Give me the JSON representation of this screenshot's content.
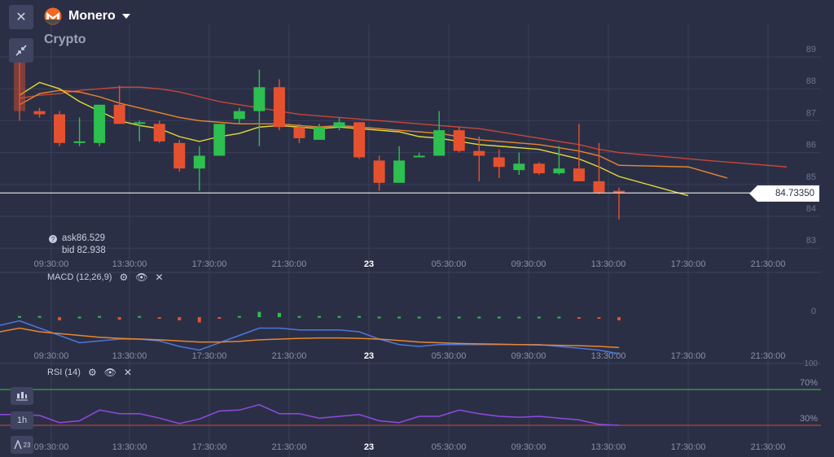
{
  "header": {
    "asset_name": "Monero",
    "category": "Crypto",
    "close_icon": "close-icon",
    "collapse_icon": "collapse-icon",
    "logo_icon": "monero-logo-icon",
    "dropdown_icon": "caret-down-icon"
  },
  "quote": {
    "ask": "ask86.529",
    "bid": "bid 82.938",
    "current_price": "84.73350",
    "current_value": 84.7335
  },
  "price_axis": {
    "labels": [
      "89",
      "88",
      "87",
      "86",
      "85",
      "84",
      "83"
    ],
    "min": 82.7,
    "max": 89.5
  },
  "time_axis": {
    "labels": [
      "09:30:00",
      "13:30:00",
      "17:30:00",
      "21:30:00",
      "23",
      "05:30:00",
      "09:30:00",
      "13:30:00",
      "17:30:00",
      "21:30:00"
    ]
  },
  "macd": {
    "label": "MACD (12,26,9)",
    "zero_label": "0"
  },
  "rsi": {
    "label": "RSI (14)",
    "level_70": "70%",
    "level_30": "30%",
    "top_label": "100"
  },
  "left_tools": {
    "chart_type_icon": "candlestick-icon",
    "timeframe": "1h",
    "draw_icon": "indicator-draw-icon",
    "badge": "23"
  },
  "colors": {
    "background": "#2b2f45",
    "bull": "#2dbf4f",
    "bear": "#e5512f",
    "ema_fast": "#e2d93b",
    "ema_mid": "#e8862f",
    "ema_slow": "#c8463c",
    "macd_line": "#4a77de",
    "signal_line": "#e8862f",
    "rsi_line": "#8e4be0",
    "rsi_70": "#38c44a",
    "rsi_30": "#d8453a"
  },
  "chart_data": {
    "type": "candlestick",
    "candles": [
      {
        "o": 88.9,
        "h": 89.0,
        "l": 87.0,
        "c": 87.3
      },
      {
        "o": 87.3,
        "h": 87.4,
        "l": 87.1,
        "c": 87.2
      },
      {
        "o": 87.2,
        "h": 87.3,
        "l": 86.2,
        "c": 86.3
      },
      {
        "o": 86.35,
        "h": 87.1,
        "l": 86.2,
        "c": 86.35
      },
      {
        "o": 86.3,
        "h": 87.5,
        "l": 86.2,
        "c": 87.5
      },
      {
        "o": 87.5,
        "h": 88.1,
        "l": 86.9,
        "c": 86.9
      },
      {
        "o": 86.95,
        "h": 87.0,
        "l": 86.35,
        "c": 86.95
      },
      {
        "o": 86.9,
        "h": 87.0,
        "l": 86.3,
        "c": 86.35
      },
      {
        "o": 86.3,
        "h": 86.4,
        "l": 85.4,
        "c": 85.5
      },
      {
        "o": 85.5,
        "h": 86.2,
        "l": 84.8,
        "c": 85.9
      },
      {
        "o": 85.9,
        "h": 86.9,
        "l": 85.9,
        "c": 86.9
      },
      {
        "o": 87.05,
        "h": 87.4,
        "l": 86.9,
        "c": 87.3
      },
      {
        "o": 87.3,
        "h": 88.6,
        "l": 86.2,
        "c": 88.05
      },
      {
        "o": 88.05,
        "h": 88.3,
        "l": 86.7,
        "c": 86.8
      },
      {
        "o": 86.8,
        "h": 86.9,
        "l": 86.3,
        "c": 86.45
      },
      {
        "o": 86.4,
        "h": 86.9,
        "l": 86.4,
        "c": 86.8
      },
      {
        "o": 86.8,
        "h": 87.1,
        "l": 86.7,
        "c": 86.95
      },
      {
        "o": 86.95,
        "h": 86.95,
        "l": 85.8,
        "c": 85.85
      },
      {
        "o": 85.75,
        "h": 85.9,
        "l": 84.8,
        "c": 85.05
      },
      {
        "o": 85.05,
        "h": 86.2,
        "l": 85.05,
        "c": 85.75
      },
      {
        "o": 85.9,
        "h": 86.0,
        "l": 85.85,
        "c": 85.9
      },
      {
        "o": 85.9,
        "h": 87.3,
        "l": 85.9,
        "c": 86.7
      },
      {
        "o": 86.7,
        "h": 86.8,
        "l": 86.0,
        "c": 86.05
      },
      {
        "o": 86.05,
        "h": 86.5,
        "l": 85.1,
        "c": 85.9
      },
      {
        "o": 85.85,
        "h": 86.1,
        "l": 85.2,
        "c": 85.55
      },
      {
        "o": 85.45,
        "h": 86.0,
        "l": 85.3,
        "c": 85.65
      },
      {
        "o": 85.65,
        "h": 85.7,
        "l": 85.3,
        "c": 85.35
      },
      {
        "o": 85.35,
        "h": 86.2,
        "l": 85.3,
        "c": 85.5
      },
      {
        "o": 85.5,
        "h": 86.9,
        "l": 85.1,
        "c": 85.1
      },
      {
        "o": 85.1,
        "h": 86.3,
        "l": 84.7,
        "c": 84.75
      },
      {
        "o": 84.8,
        "h": 84.9,
        "l": 83.9,
        "c": 84.73
      }
    ],
    "ema_fast": [
      87.8,
      88.2,
      88.0,
      87.6,
      87.3,
      87.0,
      86.85,
      86.75,
      86.5,
      86.35,
      86.5,
      86.6,
      86.8,
      86.85,
      86.8,
      86.75,
      86.8,
      86.75,
      86.7,
      86.65,
      86.5,
      86.45,
      86.35,
      86.25,
      86.2,
      86.15,
      86.1,
      85.95,
      85.8,
      85.55,
      85.25
    ],
    "ema_mid": [
      87.5,
      87.85,
      87.95,
      87.9,
      87.75,
      87.55,
      87.4,
      87.25,
      87.1,
      87.0,
      86.95,
      86.9,
      86.9,
      86.9,
      86.85,
      86.8,
      86.85,
      86.8,
      86.75,
      86.7,
      86.65,
      86.6,
      86.5,
      86.4,
      86.35,
      86.3,
      86.25,
      86.15,
      86.05,
      85.9,
      85.6
    ],
    "ema_slow": [
      87.7,
      87.8,
      87.85,
      87.95,
      88.0,
      88.05,
      88.05,
      88.0,
      87.9,
      87.75,
      87.6,
      87.5,
      87.4,
      87.3,
      87.2,
      87.15,
      87.1,
      87.05,
      87.0,
      86.95,
      86.9,
      86.85,
      86.8,
      86.75,
      86.65,
      86.55,
      86.45,
      86.35,
      86.25,
      86.1,
      86.0
    ],
    "macd_hist": [
      0.05,
      0.05,
      -0.15,
      0.02,
      0.05,
      -0.12,
      0.05,
      -0.05,
      -0.15,
      -0.25,
      -0.05,
      0.05,
      0.25,
      0.2,
      0.05,
      0.05,
      0.05,
      0.05,
      0.02,
      0.02,
      0.02,
      0.02,
      0.02,
      0.02,
      0.02,
      0.02,
      0.02,
      0.02,
      -0.02,
      -0.02,
      -0.15
    ],
    "macd_line": [
      -0.1,
      -0.3,
      -0.5,
      -0.7,
      -0.65,
      -0.6,
      -0.6,
      -0.65,
      -0.8,
      -0.9,
      -0.7,
      -0.5,
      -0.3,
      -0.3,
      -0.35,
      -0.35,
      -0.35,
      -0.4,
      -0.6,
      -0.75,
      -0.8,
      -0.75,
      -0.75,
      -0.75,
      -0.75,
      -0.75,
      -0.75,
      -0.8,
      -0.85,
      -0.9,
      -1.0
    ],
    "signal_line": [
      -0.3,
      -0.4,
      -0.45,
      -0.5,
      -0.55,
      -0.58,
      -0.6,
      -0.62,
      -0.65,
      -0.68,
      -0.68,
      -0.66,
      -0.62,
      -0.6,
      -0.58,
      -0.57,
      -0.57,
      -0.58,
      -0.6,
      -0.64,
      -0.68,
      -0.7,
      -0.72,
      -0.73,
      -0.74,
      -0.75,
      -0.76,
      -0.77,
      -0.78,
      -0.8,
      -0.83
    ],
    "rsi": [
      42,
      41,
      33,
      35,
      47,
      43,
      43,
      38,
      32,
      37,
      46,
      47,
      53,
      43,
      43,
      38,
      40,
      42,
      35,
      33,
      40,
      40,
      47,
      43,
      40,
      39,
      40,
      38,
      36,
      31,
      30
    ]
  }
}
